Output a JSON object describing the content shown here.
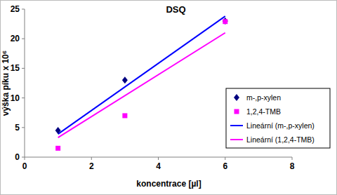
{
  "chart_data": {
    "type": "scatter",
    "title": "DSQ",
    "x_label": "koncentrace [µl]",
    "y_label": "výška píku x 10⁶",
    "xlim": [
      0,
      8
    ],
    "xticks": [
      0,
      2,
      4,
      6,
      8
    ],
    "ylim": [
      0,
      25
    ],
    "yticks": [
      0,
      5,
      10,
      15,
      20,
      25
    ],
    "grid": false,
    "legend": "right",
    "series": [
      {
        "name": "m-,p-xylen",
        "type": "scatter",
        "marker": "diamond",
        "color": "#000080",
        "x": [
          1,
          3,
          6
        ],
        "values": [
          4.5,
          13,
          23
        ]
      },
      {
        "name": "1,2,4-TMB",
        "type": "scatter",
        "marker": "square",
        "color": "#ff00ff",
        "x": [
          1,
          3,
          6
        ],
        "values": [
          1.5,
          7,
          22.9
        ]
      },
      {
        "name": "Lineární (m-,p-xylen)",
        "type": "line",
        "line_style": "solid",
        "color": "#0000ff",
        "x": [
          1,
          6
        ],
        "values": [
          3.9,
          23.8
        ]
      },
      {
        "name": "Lineární (1,2,4-TMB)",
        "type": "line",
        "line_style": "solid",
        "color": "#ff00ff",
        "x": [
          1,
          6
        ],
        "values": [
          3.3,
          21
        ]
      }
    ]
  }
}
